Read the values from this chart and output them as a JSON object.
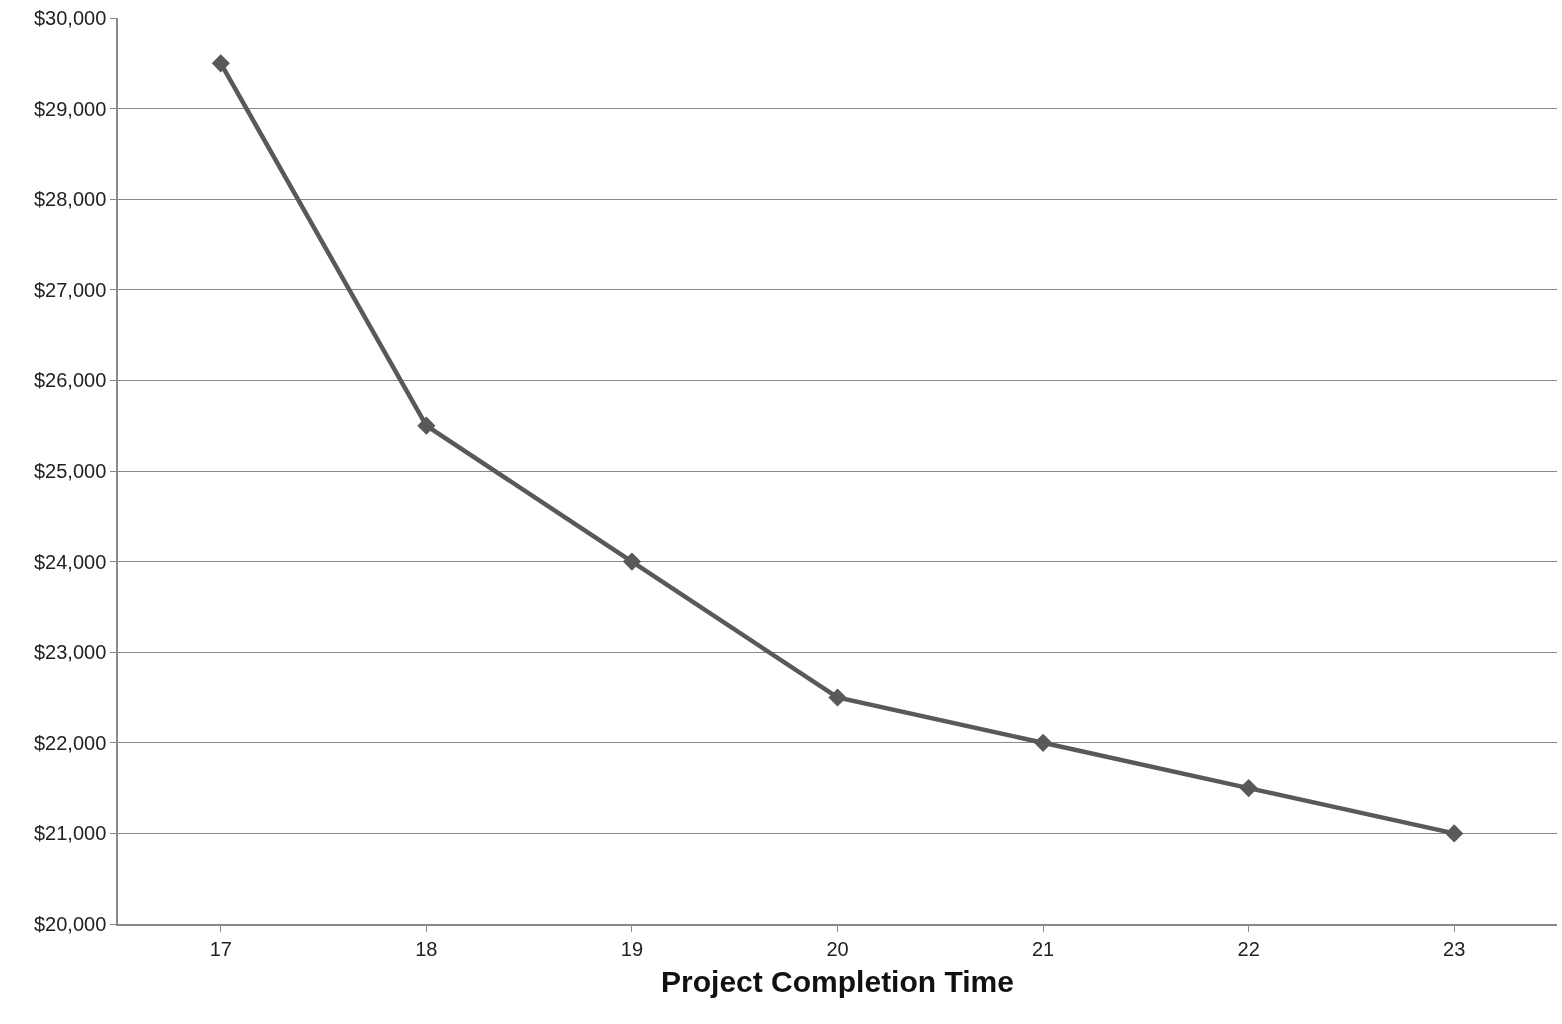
{
  "chart_data": {
    "type": "line",
    "xlabel": "Project Completion Time",
    "categories": [
      "17",
      "18",
      "19",
      "20",
      "21",
      "22",
      "23"
    ],
    "series": [
      {
        "color": "#595959",
        "values": [
          29500,
          25500,
          24000,
          22500,
          22000,
          21500,
          21000
        ]
      }
    ],
    "ylim": [
      20000,
      30000
    ],
    "yticks": [
      {
        "value": 20000,
        "label": "$20,000"
      },
      {
        "value": 21000,
        "label": "$21,000"
      },
      {
        "value": 22000,
        "label": "$22,000"
      },
      {
        "value": 23000,
        "label": "$23,000"
      },
      {
        "value": 24000,
        "label": "$24,000"
      },
      {
        "value": 25000,
        "label": "$25,000"
      },
      {
        "value": 26000,
        "label": "$26,000"
      },
      {
        "value": 27000,
        "label": "$27,000"
      },
      {
        "value": 28000,
        "label": "$28,000"
      },
      {
        "value": 29000,
        "label": "$29,000"
      },
      {
        "value": 30000,
        "label": "$30,000"
      }
    ],
    "grid": "y",
    "marker": "diamond",
    "line_style": "solid"
  }
}
